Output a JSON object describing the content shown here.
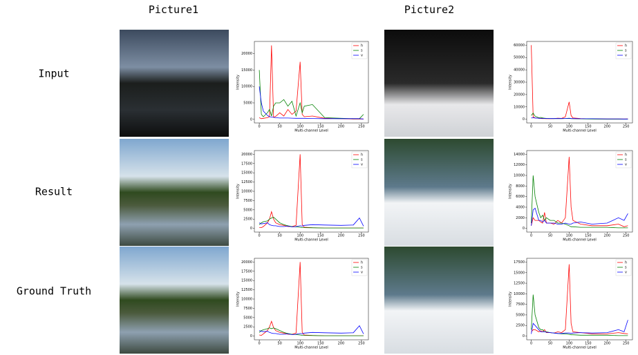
{
  "columns": [
    "Picture1",
    "Picture2"
  ],
  "rows": [
    {
      "label": "Input",
      "charts": [
        {
          "type": "line",
          "x_label": "Multi-channel Level",
          "y_label": "Intensity",
          "xlim": [
            -12,
            267
          ],
          "ylim": [
            -1100,
            23700
          ],
          "xticks": [
            0,
            50,
            100,
            150,
            200,
            250
          ],
          "yticks": [
            0,
            5000,
            10000,
            15000,
            20000
          ],
          "x": [
            0,
            5,
            10,
            20,
            25,
            30,
            35,
            40,
            50,
            60,
            70,
            80,
            90,
            100,
            105,
            110,
            130,
            160,
            200,
            230,
            245,
            255
          ],
          "series": [
            {
              "name": "h",
              "color": "#ff0000",
              "values": [
                500,
                200,
                300,
                500,
                800,
                22500,
                600,
                900,
                2000,
                1000,
                3000,
                1500,
                2500,
                17500,
                1500,
                800,
                1000,
                300,
                200,
                100,
                100,
                100
              ]
            },
            {
              "name": "s",
              "color": "#008000",
              "values": [
                15000,
                1500,
                800,
                2000,
                3000,
                1000,
                4000,
                5000,
                5000,
                6000,
                4000,
                5500,
                1000,
                5000,
                2000,
                4000,
                4500,
                500,
                300,
                200,
                200,
                1500
              ]
            },
            {
              "name": "v",
              "color": "#0000ff",
              "values": [
                10000,
                5000,
                2500,
                1200,
                800,
                700,
                600,
                500,
                400,
                400,
                400,
                350,
                300,
                300,
                300,
                300,
                250,
                200,
                200,
                200,
                200,
                100
              ]
            }
          ]
        },
        {
          "type": "line",
          "x_label": "Multi-channel Level",
          "y_label": "Intensity",
          "xlim": [
            -12,
            267
          ],
          "ylim": [
            -3000,
            63000
          ],
          "xticks": [
            0,
            50,
            100,
            150,
            200,
            250
          ],
          "yticks": [
            0,
            10000,
            20000,
            30000,
            40000,
            50000,
            60000
          ],
          "x": [
            0,
            5,
            10,
            20,
            25,
            30,
            35,
            40,
            50,
            60,
            70,
            80,
            90,
            100,
            105,
            110,
            130,
            160,
            200,
            230,
            245,
            255
          ],
          "series": [
            {
              "name": "h",
              "color": "#ff0000",
              "values": [
                60000,
                2000,
                1000,
                800,
                600,
                500,
                500,
                400,
                400,
                500,
                800,
                700,
                2000,
                14000,
                3000,
                1000,
                500,
                300,
                200,
                200,
                200,
                300
              ]
            },
            {
              "name": "s",
              "color": "#008000",
              "values": [
                3000,
                5000,
                2500,
                1200,
                1500,
                1000,
                800,
                700,
                600,
                500,
                500,
                500,
                600,
                800,
                500,
                400,
                300,
                200,
                100,
                100,
                100,
                100
              ]
            },
            {
              "name": "v",
              "color": "#0000ff",
              "values": [
                1000,
                1200,
                1000,
                800,
                700,
                700,
                600,
                600,
                500,
                500,
                500,
                500,
                600,
                600,
                500,
                500,
                400,
                400,
                300,
                300,
                200,
                200
              ]
            }
          ]
        }
      ]
    },
    {
      "label": "Result",
      "charts": [
        {
          "type": "line",
          "x_label": "Multi-channel Level",
          "y_label": "Intensity",
          "xlim": [
            -12,
            267
          ],
          "ylim": [
            -1000,
            21000
          ],
          "xticks": [
            0,
            50,
            100,
            150,
            200,
            250
          ],
          "yticks": [
            0,
            2500,
            5000,
            7500,
            10000,
            12500,
            15000,
            17500,
            20000
          ],
          "x": [
            0,
            5,
            10,
            20,
            25,
            30,
            35,
            40,
            50,
            60,
            70,
            80,
            90,
            100,
            105,
            110,
            130,
            160,
            200,
            230,
            245,
            255
          ],
          "series": [
            {
              "name": "h",
              "color": "#ff0000",
              "values": [
                200,
                200,
                500,
                1500,
                2500,
                4500,
                2500,
                1500,
                1000,
                800,
                500,
                500,
                800,
                20000,
                1000,
                300,
                200,
                100,
                100,
                100,
                100,
                100
              ]
            },
            {
              "name": "s",
              "color": "#008000",
              "values": [
                1000,
                1500,
                1800,
                2000,
                2500,
                2800,
                3000,
                2500,
                1500,
                1000,
                700,
                500,
                400,
                300,
                200,
                200,
                150,
                100,
                100,
                100,
                100,
                100
              ]
            },
            {
              "name": "v",
              "color": "#0000ff",
              "values": [
                1500,
                1200,
                1300,
                1500,
                1000,
                800,
                700,
                700,
                500,
                500,
                600,
                400,
                500,
                700,
                600,
                800,
                1000,
                900,
                800,
                900,
                2800,
                600
              ]
            }
          ]
        },
        {
          "type": "line",
          "x_label": "Multi-channel Level",
          "y_label": "Intensity",
          "xlim": [
            -12,
            267
          ],
          "ylim": [
            -700,
            14700
          ],
          "xticks": [
            0,
            50,
            100,
            150,
            200,
            250
          ],
          "yticks": [
            0,
            2000,
            4000,
            6000,
            8000,
            10000,
            12000,
            14000
          ],
          "x": [
            0,
            5,
            10,
            20,
            25,
            30,
            35,
            40,
            50,
            60,
            70,
            80,
            90,
            100,
            105,
            110,
            130,
            160,
            200,
            230,
            245,
            255
          ],
          "series": [
            {
              "name": "h",
              "color": "#ff0000",
              "values": [
                500,
                2000,
                1500,
                1500,
                1200,
                1000,
                3000,
                1000,
                1000,
                800,
                1500,
                1000,
                2000,
                13500,
                4000,
                1500,
                800,
                500,
                500,
                800,
                300,
                500
              ]
            },
            {
              "name": "s",
              "color": "#008000",
              "values": [
                1000,
                10000,
                6000,
                3000,
                2000,
                2500,
                1500,
                2000,
                1500,
                1500,
                1000,
                1000,
                800,
                500,
                300,
                300,
                200,
                200,
                200,
                100,
                100,
                100
              ]
            },
            {
              "name": "v",
              "color": "#0000ff",
              "values": [
                500,
                3500,
                3800,
                1500,
                1500,
                1200,
                1500,
                1000,
                1000,
                1000,
                800,
                800,
                1000,
                800,
                800,
                1000,
                1200,
                800,
                1000,
                2000,
                1500,
                2800
              ]
            }
          ]
        }
      ]
    },
    {
      "label": "Ground Truth",
      "charts": [
        {
          "type": "line",
          "x_label": "Multi-channel Level",
          "y_label": "Intensity",
          "xlim": [
            -12,
            267
          ],
          "ylim": [
            -1000,
            21000
          ],
          "xticks": [
            0,
            50,
            100,
            150,
            200,
            250
          ],
          "yticks": [
            0,
            2500,
            5000,
            7500,
            10000,
            12500,
            15000,
            17500,
            20000
          ],
          "x": [
            0,
            5,
            10,
            20,
            25,
            30,
            35,
            40,
            50,
            60,
            70,
            80,
            90,
            100,
            105,
            110,
            130,
            160,
            200,
            230,
            245,
            255
          ],
          "series": [
            {
              "name": "h",
              "color": "#ff0000",
              "values": [
                300,
                200,
                600,
                1500,
                2500,
                4000,
                2300,
                1500,
                1000,
                800,
                500,
                500,
                800,
                20000,
                1000,
                300,
                200,
                100,
                100,
                100,
                100,
                100
              ]
            },
            {
              "name": "s",
              "color": "#008000",
              "values": [
                1000,
                1500,
                1700,
                2000,
                2200,
                2000,
                2200,
                2000,
                1500,
                1000,
                700,
                500,
                400,
                300,
                200,
                200,
                150,
                100,
                100,
                100,
                100,
                100
              ]
            },
            {
              "name": "v",
              "color": "#0000ff",
              "values": [
                1500,
                1300,
                1200,
                1300,
                1000,
                800,
                700,
                700,
                500,
                500,
                600,
                400,
                500,
                700,
                600,
                800,
                1000,
                900,
                800,
                900,
                2800,
                600
              ]
            }
          ]
        },
        {
          "type": "line",
          "x_label": "Multi-channel Level",
          "y_label": "Intensity",
          "xlim": [
            -12,
            267
          ],
          "ylim": [
            -900,
            18400
          ],
          "xticks": [
            0,
            50,
            100,
            150,
            200,
            250
          ],
          "yticks": [
            0,
            2500,
            5000,
            7500,
            10000,
            12500,
            15000,
            17500
          ],
          "x": [
            0,
            5,
            10,
            20,
            25,
            30,
            35,
            40,
            50,
            60,
            70,
            80,
            90,
            100,
            105,
            110,
            130,
            160,
            200,
            230,
            245,
            255
          ],
          "series": [
            {
              "name": "h",
              "color": "#ff0000",
              "values": [
                1000,
                1500,
                1500,
                1000,
                1200,
                1000,
                1500,
                800,
                800,
                700,
                1000,
                800,
                1500,
                17000,
                3000,
                1000,
                800,
                500,
                500,
                800,
                600,
                500
              ]
            },
            {
              "name": "s",
              "color": "#008000",
              "values": [
                1500,
                9800,
                5000,
                2000,
                1500,
                1500,
                1000,
                1000,
                800,
                700,
                600,
                500,
                500,
                400,
                300,
                300,
                200,
                200,
                200,
                100,
                100,
                100
              ]
            },
            {
              "name": "v",
              "color": "#0000ff",
              "values": [
                500,
                3000,
                2500,
                1500,
                1000,
                1000,
                1000,
                900,
                800,
                700,
                600,
                600,
                700,
                700,
                600,
                700,
                800,
                700,
                800,
                1500,
                1000,
                3800
              ]
            }
          ]
        }
      ]
    }
  ]
}
